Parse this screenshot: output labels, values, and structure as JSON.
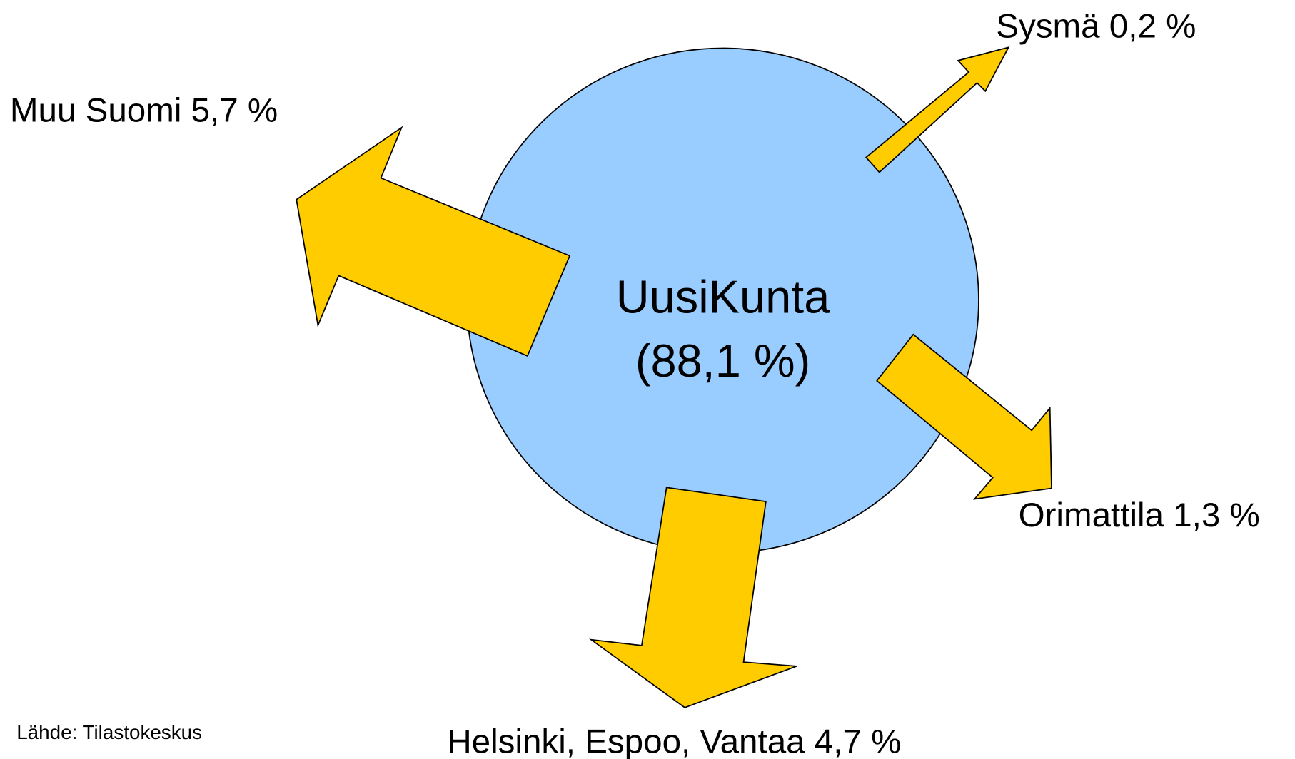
{
  "center": {
    "name": "UusiKunta",
    "share": "(88,1 %)"
  },
  "flows": [
    {
      "label": "Sysmä 0,2 %"
    },
    {
      "label": "Muu Suomi 5,7 %"
    },
    {
      "label": "Orimattila 1,3 %"
    },
    {
      "label": "Helsinki, Espoo, Vantaa 4,7 %"
    }
  ],
  "source": "Lähde: Tilastokeskus"
}
